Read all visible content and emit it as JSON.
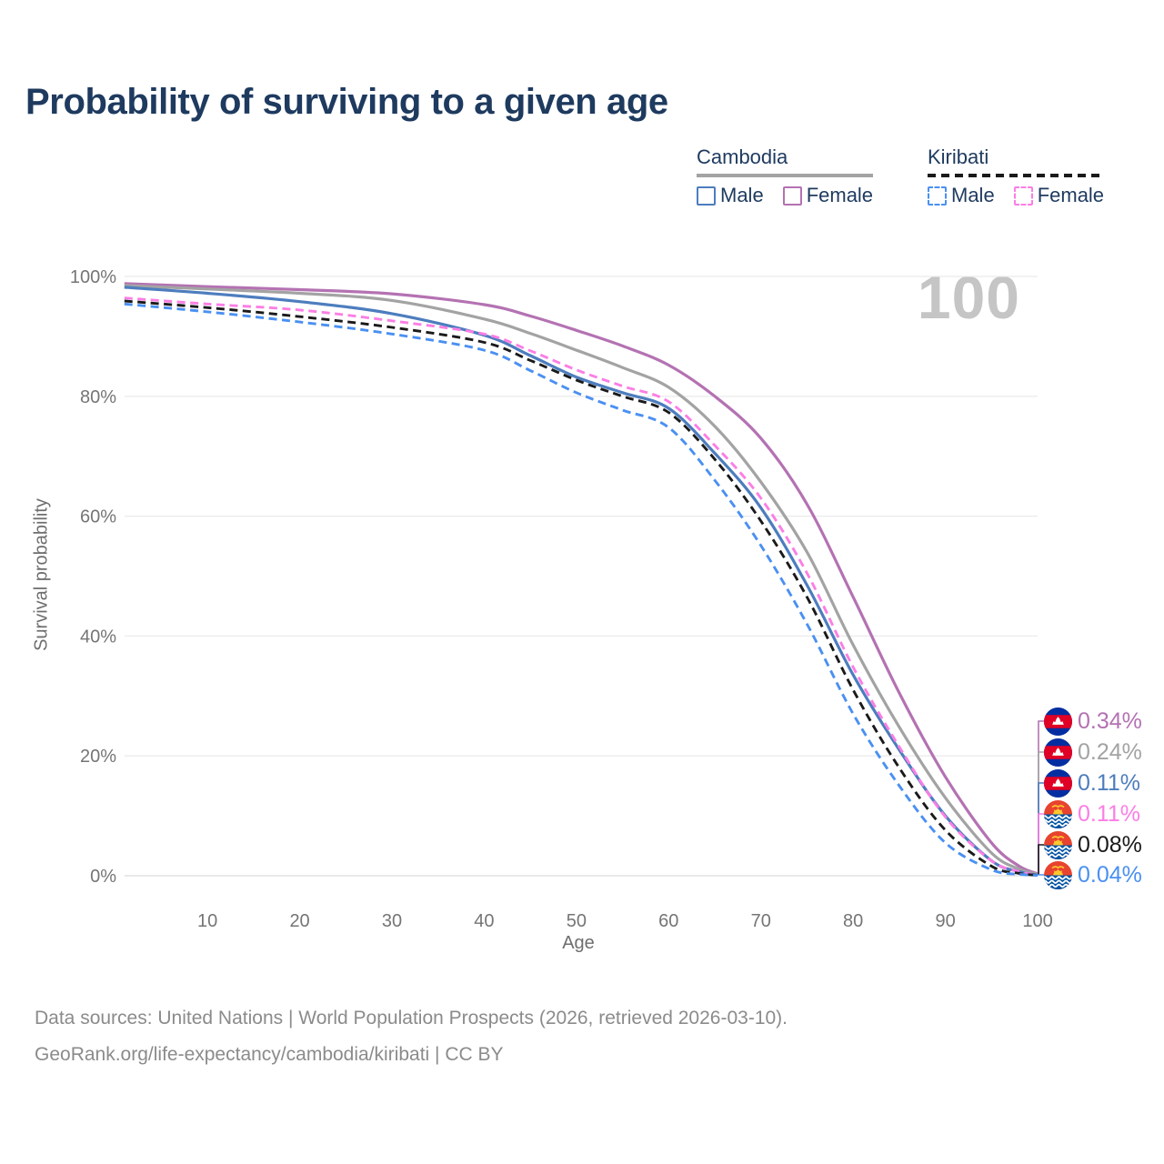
{
  "title": "Probability of surviving to a given age",
  "watermark": "100",
  "legend": {
    "groups": [
      {
        "name": "Cambodia",
        "underline_style": "solid",
        "underline_color": "#a3a3a3",
        "items": [
          {
            "label": "Male",
            "color": "#4d7dbe",
            "line": "solid"
          },
          {
            "label": "Female",
            "color": "#b472b2",
            "line": "solid"
          }
        ]
      },
      {
        "name": "Kiribati",
        "underline_style": "dashed",
        "underline_color": "#1a1a1a",
        "items": [
          {
            "label": "Male",
            "color": "#4a90f2",
            "line": "dashed"
          },
          {
            "label": "Female",
            "color": "#fb7ee5",
            "line": "dashed"
          }
        ]
      }
    ]
  },
  "axes": {
    "y": {
      "label": "Survival probability",
      "ticks": [
        "0%",
        "20%",
        "40%",
        "60%",
        "80%",
        "100%"
      ],
      "tick_values": [
        0,
        20,
        40,
        60,
        80,
        100
      ]
    },
    "x": {
      "label": "Age",
      "ticks": [
        "10",
        "20",
        "30",
        "40",
        "50",
        "60",
        "70",
        "80",
        "90",
        "100"
      ],
      "tick_values": [
        10,
        20,
        30,
        40,
        50,
        60,
        70,
        80,
        90,
        100
      ]
    }
  },
  "chart_data": {
    "type": "line",
    "title": "Probability of surviving to a given age",
    "xlabel": "Age",
    "ylabel": "Survival probability",
    "xlim": [
      0,
      100
    ],
    "ylim": [
      0,
      100
    ],
    "grid": "horizontal-only",
    "x": [
      1,
      10,
      20,
      30,
      40,
      45,
      50,
      55,
      60,
      65,
      70,
      75,
      80,
      85,
      90,
      95,
      98,
      100
    ],
    "series": [
      {
        "name": "Cambodia Female",
        "color": "#b472b2",
        "line": "solid",
        "flag": "cambodia",
        "end_label": "0.34%",
        "values": [
          98.8,
          98.3,
          97.8,
          97.1,
          95.3,
          93.4,
          91.0,
          88.4,
          85.2,
          80.0,
          73.0,
          62.0,
          46.5,
          30.5,
          16.5,
          5.5,
          1.6,
          0.34
        ]
      },
      {
        "name": "Cambodia (both sexes)",
        "color": "#a3a3a3",
        "line": "solid",
        "flag": "cambodia",
        "end_label": "0.24%",
        "values": [
          98.5,
          97.9,
          97.2,
          96.0,
          92.9,
          90.5,
          87.7,
          84.8,
          81.5,
          75.0,
          65.7,
          54.0,
          38.5,
          24.8,
          13.0,
          3.8,
          1.1,
          0.24
        ]
      },
      {
        "name": "Cambodia Male",
        "color": "#4d7dbe",
        "line": "solid",
        "flag": "cambodia",
        "end_label": "0.11%",
        "values": [
          98.2,
          97.2,
          95.8,
          93.8,
          90.2,
          86.8,
          83.2,
          80.6,
          78.0,
          70.5,
          61.4,
          48.5,
          33.5,
          21.0,
          10.0,
          2.5,
          0.7,
          0.11
        ]
      },
      {
        "name": "Kiribati Female",
        "color": "#fb7ee5",
        "line": "dashed",
        "flag": "kiribati",
        "end_label": "0.11%",
        "values": [
          96.4,
          95.4,
          94.4,
          92.6,
          90.4,
          87.6,
          84.4,
          81.7,
          79.1,
          71.8,
          63.0,
          50.5,
          34.8,
          21.5,
          9.8,
          2.5,
          0.7,
          0.11
        ]
      },
      {
        "name": "Kiribati (both sexes)",
        "color": "#1a1a1a",
        "line": "dashed",
        "flag": "kiribati",
        "end_label": "0.08%",
        "values": [
          95.9,
          94.8,
          93.3,
          91.5,
          89.0,
          86.0,
          82.7,
          80.0,
          77.3,
          69.5,
          59.2,
          46.5,
          31.0,
          18.0,
          7.6,
          1.6,
          0.4,
          0.08
        ]
      },
      {
        "name": "Kiribati Male",
        "color": "#4a90f2",
        "line": "dashed",
        "flag": "kiribati",
        "end_label": "0.04%",
        "values": [
          95.4,
          94.1,
          92.4,
          90.4,
          87.7,
          84.3,
          80.6,
          77.7,
          74.8,
          66.0,
          55.1,
          42.0,
          27.0,
          15.0,
          5.5,
          1.0,
          0.25,
          0.04
        ]
      }
    ]
  },
  "footer": {
    "line1": "Data sources: United Nations | World Population Prospects (2026, retrieved 2026-03-10).",
    "line2": "GeoRank.org/life-expectancy/cambodia/kiribati | CC BY"
  }
}
